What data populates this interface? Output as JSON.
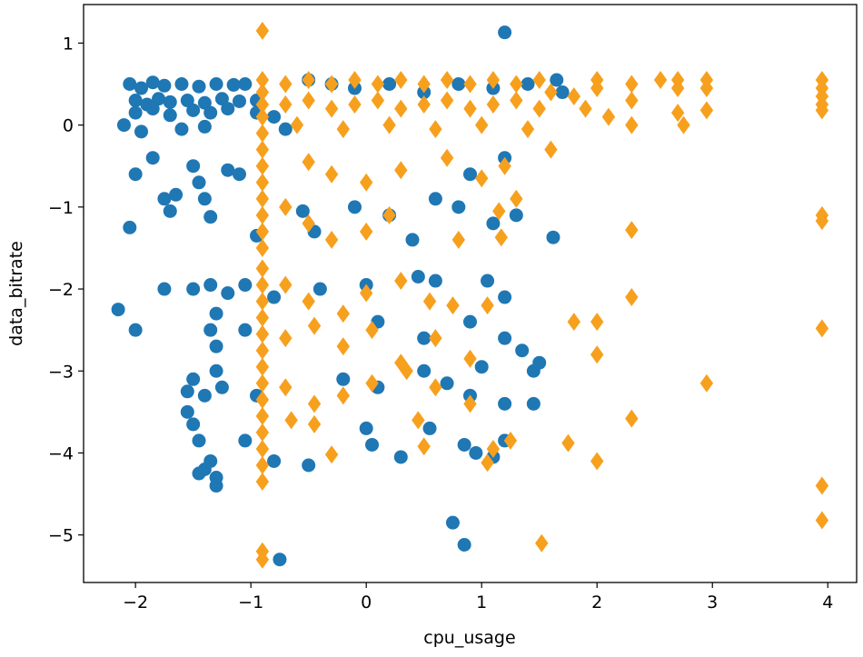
{
  "chart_data": {
    "type": "scatter",
    "title": "",
    "xlabel": "cpu_usage",
    "ylabel": "data_bitrate",
    "xlim": [
      -2.45,
      4.25
    ],
    "ylim": [
      -5.58,
      1.47
    ],
    "xticks": [
      -2,
      -1,
      0,
      1,
      2,
      3,
      4
    ],
    "yticks": [
      -5,
      -4,
      -3,
      -2,
      -1,
      0,
      1
    ],
    "grid": false,
    "legend": "none",
    "series": [
      {
        "name": "blue circles",
        "color": "#1f77b4",
        "marker": "circle",
        "points": [
          [
            -2.05,
            0.5
          ],
          [
            -1.95,
            0.45
          ],
          [
            -1.85,
            0.52
          ],
          [
            -1.75,
            0.48
          ],
          [
            -1.6,
            0.5
          ],
          [
            -1.45,
            0.47
          ],
          [
            -1.3,
            0.5
          ],
          [
            -1.15,
            0.49
          ],
          [
            -1.05,
            0.5
          ],
          [
            -2.0,
            0.3
          ],
          [
            -1.9,
            0.25
          ],
          [
            -1.8,
            0.32
          ],
          [
            -1.7,
            0.28
          ],
          [
            -1.55,
            0.3
          ],
          [
            -1.4,
            0.27
          ],
          [
            -1.25,
            0.32
          ],
          [
            -1.1,
            0.29
          ],
          [
            -0.95,
            0.3
          ],
          [
            -2.0,
            0.15
          ],
          [
            -1.85,
            0.2
          ],
          [
            -1.7,
            0.12
          ],
          [
            -1.5,
            0.18
          ],
          [
            -1.35,
            0.15
          ],
          [
            -1.2,
            0.2
          ],
          [
            -0.95,
            0.15
          ],
          [
            -0.8,
            0.1
          ],
          [
            -0.5,
            0.55
          ],
          [
            -0.3,
            0.5
          ],
          [
            -0.1,
            0.45
          ],
          [
            0.2,
            0.5
          ],
          [
            0.5,
            0.4
          ],
          [
            0.8,
            0.5
          ],
          [
            1.1,
            0.45
          ],
          [
            1.4,
            0.5
          ],
          [
            1.7,
            0.4
          ],
          [
            1.65,
            0.55
          ],
          [
            1.2,
            1.13
          ],
          [
            -2.1,
            0.0
          ],
          [
            -1.95,
            -0.08
          ],
          [
            -1.6,
            -0.05
          ],
          [
            -1.4,
            -0.02
          ],
          [
            -0.7,
            -0.05
          ],
          [
            -2.0,
            -0.6
          ],
          [
            -1.85,
            -0.4
          ],
          [
            -1.75,
            -0.9
          ],
          [
            -1.65,
            -0.85
          ],
          [
            -1.5,
            -0.5
          ],
          [
            -1.45,
            -0.7
          ],
          [
            -1.4,
            -0.9
          ],
          [
            -1.35,
            -1.12
          ],
          [
            -1.2,
            -0.55
          ],
          [
            -1.1,
            -0.6
          ],
          [
            -2.05,
            -1.25
          ],
          [
            -1.7,
            -1.05
          ],
          [
            -0.95,
            -1.35
          ],
          [
            -0.55,
            -1.05
          ],
          [
            -0.45,
            -1.3
          ],
          [
            -0.1,
            -1.0
          ],
          [
            0.2,
            -1.1
          ],
          [
            0.4,
            -1.4
          ],
          [
            0.6,
            -0.9
          ],
          [
            0.8,
            -1.0
          ],
          [
            1.1,
            -1.2
          ],
          [
            1.3,
            -1.1
          ],
          [
            1.62,
            -1.37
          ],
          [
            0.9,
            -0.6
          ],
          [
            1.2,
            -0.4
          ],
          [
            -2.15,
            -2.25
          ],
          [
            -2.0,
            -2.5
          ],
          [
            -1.75,
            -2.0
          ],
          [
            -1.5,
            -2.0
          ],
          [
            -1.35,
            -1.95
          ],
          [
            -1.3,
            -2.3
          ],
          [
            -1.2,
            -2.05
          ],
          [
            -1.05,
            -1.95
          ],
          [
            -0.8,
            -2.1
          ],
          [
            -0.4,
            -2.0
          ],
          [
            0.0,
            -1.95
          ],
          [
            0.45,
            -1.85
          ],
          [
            0.6,
            -1.9
          ],
          [
            1.05,
            -1.9
          ],
          [
            1.2,
            -2.1
          ],
          [
            -1.35,
            -2.5
          ],
          [
            -1.3,
            -2.7
          ],
          [
            -1.05,
            -2.5
          ],
          [
            0.1,
            -2.4
          ],
          [
            0.5,
            -2.6
          ],
          [
            0.9,
            -2.4
          ],
          [
            1.2,
            -2.6
          ],
          [
            1.35,
            -2.75
          ],
          [
            -1.55,
            -3.25
          ],
          [
            -1.5,
            -3.1
          ],
          [
            -1.4,
            -3.3
          ],
          [
            -1.3,
            -3.0
          ],
          [
            -1.25,
            -3.2
          ],
          [
            -0.95,
            -3.3
          ],
          [
            -0.2,
            -3.1
          ],
          [
            0.1,
            -3.2
          ],
          [
            0.5,
            -3.0
          ],
          [
            0.7,
            -3.15
          ],
          [
            0.9,
            -3.3
          ],
          [
            1.0,
            -2.95
          ],
          [
            1.2,
            -3.4
          ],
          [
            1.45,
            -3.0
          ],
          [
            1.5,
            -2.9
          ],
          [
            -1.55,
            -3.5
          ],
          [
            -1.5,
            -3.65
          ],
          [
            -1.45,
            -3.85
          ],
          [
            -1.45,
            -4.25
          ],
          [
            -1.4,
            -4.2
          ],
          [
            -1.35,
            -4.1
          ],
          [
            -1.3,
            -4.4
          ],
          [
            -1.3,
            -4.3
          ],
          [
            -1.05,
            -3.85
          ],
          [
            -0.8,
            -4.1
          ],
          [
            -0.5,
            -4.15
          ],
          [
            0.0,
            -3.7
          ],
          [
            0.05,
            -3.9
          ],
          [
            0.3,
            -4.05
          ],
          [
            0.55,
            -3.7
          ],
          [
            0.85,
            -3.9
          ],
          [
            0.95,
            -4.0
          ],
          [
            1.1,
            -4.05
          ],
          [
            1.2,
            -3.85
          ],
          [
            1.45,
            -3.4
          ],
          [
            0.75,
            -4.85
          ],
          [
            0.85,
            -5.12
          ],
          [
            -0.75,
            -5.3
          ]
        ]
      },
      {
        "name": "orange diamonds",
        "color": "#f7a01e",
        "marker": "diamond",
        "points": [
          [
            -0.9,
            1.15
          ],
          [
            -0.9,
            0.55
          ],
          [
            -0.9,
            0.4
          ],
          [
            -0.9,
            0.25
          ],
          [
            -0.9,
            0.1
          ],
          [
            -0.9,
            -0.1
          ],
          [
            -0.9,
            -0.3
          ],
          [
            -0.9,
            -0.5
          ],
          [
            -0.9,
            -0.7
          ],
          [
            -0.9,
            -0.9
          ],
          [
            -0.9,
            -1.1
          ],
          [
            -0.9,
            -1.3
          ],
          [
            -0.9,
            -1.5
          ],
          [
            -0.9,
            -1.75
          ],
          [
            -0.9,
            -1.95
          ],
          [
            -0.9,
            -2.15
          ],
          [
            -0.9,
            -2.35
          ],
          [
            -0.9,
            -2.55
          ],
          [
            -0.9,
            -2.75
          ],
          [
            -0.9,
            -2.95
          ],
          [
            -0.9,
            -3.15
          ],
          [
            -0.9,
            -3.35
          ],
          [
            -0.9,
            -3.55
          ],
          [
            -0.9,
            -3.75
          ],
          [
            -0.9,
            -3.95
          ],
          [
            -0.9,
            -4.15
          ],
          [
            -0.9,
            -4.35
          ],
          [
            -0.9,
            -5.2
          ],
          [
            -0.9,
            -5.3
          ],
          [
            -0.7,
            0.5
          ],
          [
            -0.5,
            0.55
          ],
          [
            -0.3,
            0.5
          ],
          [
            -0.1,
            0.55
          ],
          [
            0.1,
            0.5
          ],
          [
            0.3,
            0.55
          ],
          [
            0.5,
            0.5
          ],
          [
            0.7,
            0.55
          ],
          [
            0.9,
            0.5
          ],
          [
            1.1,
            0.55
          ],
          [
            1.3,
            0.5
          ],
          [
            1.5,
            0.55
          ],
          [
            -0.7,
            0.25
          ],
          [
            -0.5,
            0.3
          ],
          [
            -0.3,
            0.2
          ],
          [
            -0.1,
            0.25
          ],
          [
            0.1,
            0.3
          ],
          [
            0.3,
            0.2
          ],
          [
            0.5,
            0.25
          ],
          [
            0.7,
            0.3
          ],
          [
            0.9,
            0.2
          ],
          [
            1.1,
            0.25
          ],
          [
            1.3,
            0.3
          ],
          [
            1.5,
            0.2
          ],
          [
            -0.6,
            0.0
          ],
          [
            -0.2,
            -0.05
          ],
          [
            0.2,
            0.0
          ],
          [
            0.6,
            -0.05
          ],
          [
            1.0,
            0.0
          ],
          [
            1.4,
            -0.05
          ],
          [
            1.6,
            0.4
          ],
          [
            1.8,
            0.35
          ],
          [
            1.9,
            0.2
          ],
          [
            2.0,
            0.55
          ],
          [
            2.0,
            0.45
          ],
          [
            2.1,
            0.1
          ],
          [
            2.3,
            0.5
          ],
          [
            2.3,
            0.3
          ],
          [
            2.3,
            0.0
          ],
          [
            2.55,
            0.55
          ],
          [
            2.7,
            0.55
          ],
          [
            2.7,
            0.45
          ],
          [
            2.7,
            0.15
          ],
          [
            2.75,
            0.0
          ],
          [
            2.95,
            0.55
          ],
          [
            2.95,
            0.45
          ],
          [
            2.95,
            0.18
          ],
          [
            3.95,
            0.55
          ],
          [
            3.95,
            0.45
          ],
          [
            3.95,
            0.35
          ],
          [
            3.95,
            0.25
          ],
          [
            3.95,
            0.18
          ],
          [
            -0.5,
            -0.45
          ],
          [
            -0.3,
            -0.6
          ],
          [
            0.0,
            -0.7
          ],
          [
            0.3,
            -0.55
          ],
          [
            0.7,
            -0.4
          ],
          [
            1.0,
            -0.65
          ],
          [
            1.2,
            -0.5
          ],
          [
            1.6,
            -0.3
          ],
          [
            -0.7,
            -1.0
          ],
          [
            -0.5,
            -1.2
          ],
          [
            -0.3,
            -1.4
          ],
          [
            0.0,
            -1.3
          ],
          [
            0.2,
            -1.1
          ],
          [
            0.8,
            -1.4
          ],
          [
            1.15,
            -1.05
          ],
          [
            1.3,
            -0.9
          ],
          [
            1.17,
            -1.37
          ],
          [
            -0.7,
            -1.95
          ],
          [
            -0.5,
            -2.15
          ],
          [
            -0.2,
            -2.3
          ],
          [
            0.0,
            -2.05
          ],
          [
            0.3,
            -1.9
          ],
          [
            0.55,
            -2.15
          ],
          [
            0.75,
            -2.2
          ],
          [
            1.05,
            -2.2
          ],
          [
            -0.7,
            -2.6
          ],
          [
            -0.45,
            -2.45
          ],
          [
            -0.2,
            -2.7
          ],
          [
            0.05,
            -2.5
          ],
          [
            0.3,
            -2.9
          ],
          [
            0.6,
            -2.6
          ],
          [
            0.9,
            -2.85
          ],
          [
            -0.7,
            -3.2
          ],
          [
            -0.45,
            -3.4
          ],
          [
            -0.2,
            -3.3
          ],
          [
            0.05,
            -3.15
          ],
          [
            0.35,
            -3.0
          ],
          [
            0.6,
            -3.2
          ],
          [
            0.9,
            -3.4
          ],
          [
            -0.65,
            -3.6
          ],
          [
            -0.45,
            -3.65
          ],
          [
            -0.3,
            -4.02
          ],
          [
            0.45,
            -3.6
          ],
          [
            0.5,
            -3.92
          ],
          [
            1.05,
            -4.12
          ],
          [
            1.1,
            -3.95
          ],
          [
            1.25,
            -3.85
          ],
          [
            1.75,
            -3.88
          ],
          [
            1.8,
            -2.4
          ],
          [
            2.0,
            -2.4
          ],
          [
            2.0,
            -2.8
          ],
          [
            2.0,
            -4.1
          ],
          [
            2.3,
            -3.58
          ],
          [
            2.3,
            -2.1
          ],
          [
            2.3,
            -1.28
          ],
          [
            2.95,
            -3.15
          ],
          [
            1.52,
            -5.1
          ],
          [
            3.95,
            -1.1
          ],
          [
            3.95,
            -1.17
          ],
          [
            3.95,
            -2.48
          ],
          [
            3.95,
            -4.4
          ],
          [
            3.95,
            -4.82
          ]
        ]
      }
    ]
  }
}
